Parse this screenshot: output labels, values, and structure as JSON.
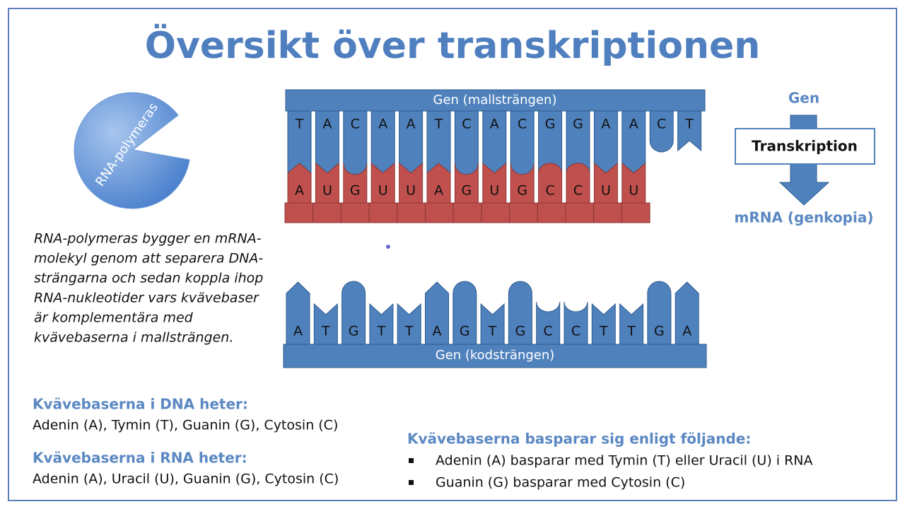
{
  "title": "Översikt över transkriptionen",
  "polymerase": {
    "label": "RNA-polymeras"
  },
  "description": {
    "lines": [
      "RNA-polymeras bygger en mRNA-",
      "molekyl genom att separera DNA-",
      "strängarna och sedan koppla ihop",
      "RNA-nukleotider vars kvävebaser",
      "är komplementära med",
      "kvävebaserna i mallsträngen."
    ]
  },
  "template": {
    "label": "Gen (mallsträngen)",
    "bases": [
      "T",
      "A",
      "C",
      "A",
      "A",
      "T",
      "C",
      "A",
      "C",
      "G",
      "G",
      "A",
      "A",
      "C",
      "T"
    ]
  },
  "mrna": {
    "bases": [
      "A",
      "U",
      "G",
      "U",
      "U",
      "A",
      "G",
      "U",
      "G",
      "C",
      "C",
      "U",
      "U"
    ]
  },
  "coding": {
    "label": "Gen (kodsträngen)",
    "bases": [
      "A",
      "T",
      "G",
      "T",
      "T",
      "A",
      "G",
      "T",
      "G",
      "C",
      "C",
      "T",
      "T",
      "G",
      "A"
    ]
  },
  "flow": {
    "top": "Gen",
    "process": "Transkription",
    "bottom": "mRNA (genkopia)"
  },
  "dna_bases": {
    "heading": "Kvävebaserna i DNA heter:",
    "text": "Adenin (A), Tymin (T), Guanin (G), Cytosin (C)"
  },
  "rna_bases": {
    "heading": "Kvävebaserna i RNA heter:",
    "text": "Adenin (A), Uracil (U), Guanin (G), Cytosin (C)"
  },
  "pairing": {
    "heading": "Kvävebaserna basparar sig enligt följande:",
    "items": [
      "Adenin (A) basparar med Tymin (T) eller Uracil (U) i RNA",
      "Guanin (G) basparar med Cytosin (C)"
    ]
  }
}
